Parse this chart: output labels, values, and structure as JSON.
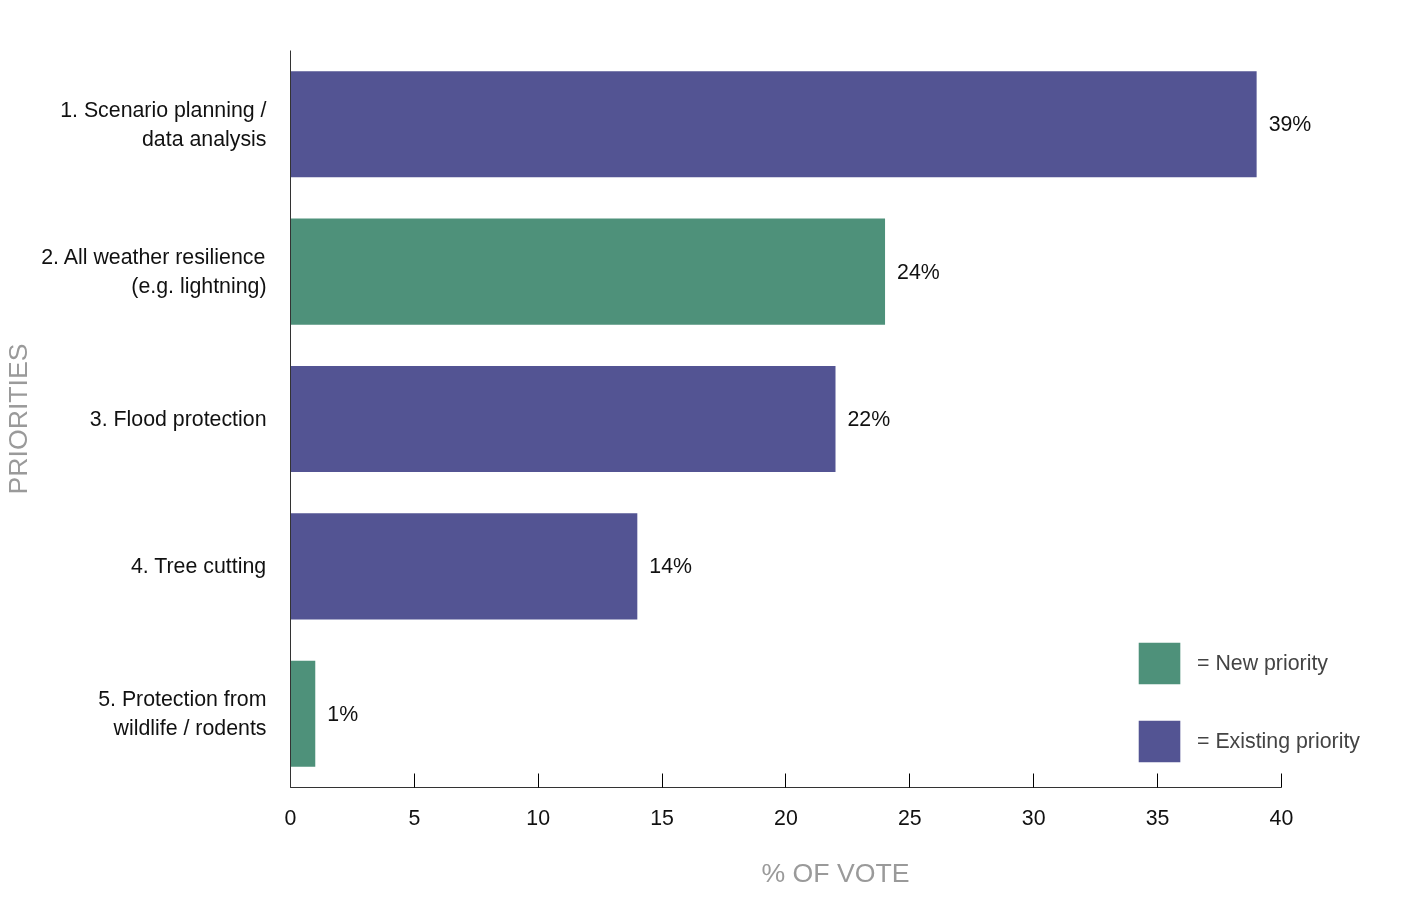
{
  "chart_data": {
    "type": "bar",
    "orientation": "horizontal",
    "xlabel": "% OF VOTE",
    "ylabel": "PRIORITIES",
    "categories": [
      "1. Scenario planning /\ndata analysis",
      "2. All weather resilience\n(e.g. lightning)",
      "3. Flood protection",
      "4. Tree cutting",
      "5. Protection from\nwildlife / rodents"
    ],
    "series": [
      {
        "name": "= New priority",
        "color": "#4e917a",
        "values": [
          null,
          24,
          null,
          null,
          1
        ],
        "value_labels": [
          null,
          "24%",
          null,
          null,
          "1%"
        ]
      },
      {
        "name": "= Existing priority",
        "color": "#535493",
        "values": [
          39,
          null,
          22,
          14,
          null
        ],
        "value_labels": [
          "39%",
          null,
          "22%",
          "14%",
          null
        ]
      }
    ],
    "xlim": [
      0,
      40
    ],
    "xticks": [
      0,
      5,
      10,
      15,
      20,
      25,
      30,
      35,
      40
    ],
    "grid": false,
    "legend": "bottom right"
  }
}
